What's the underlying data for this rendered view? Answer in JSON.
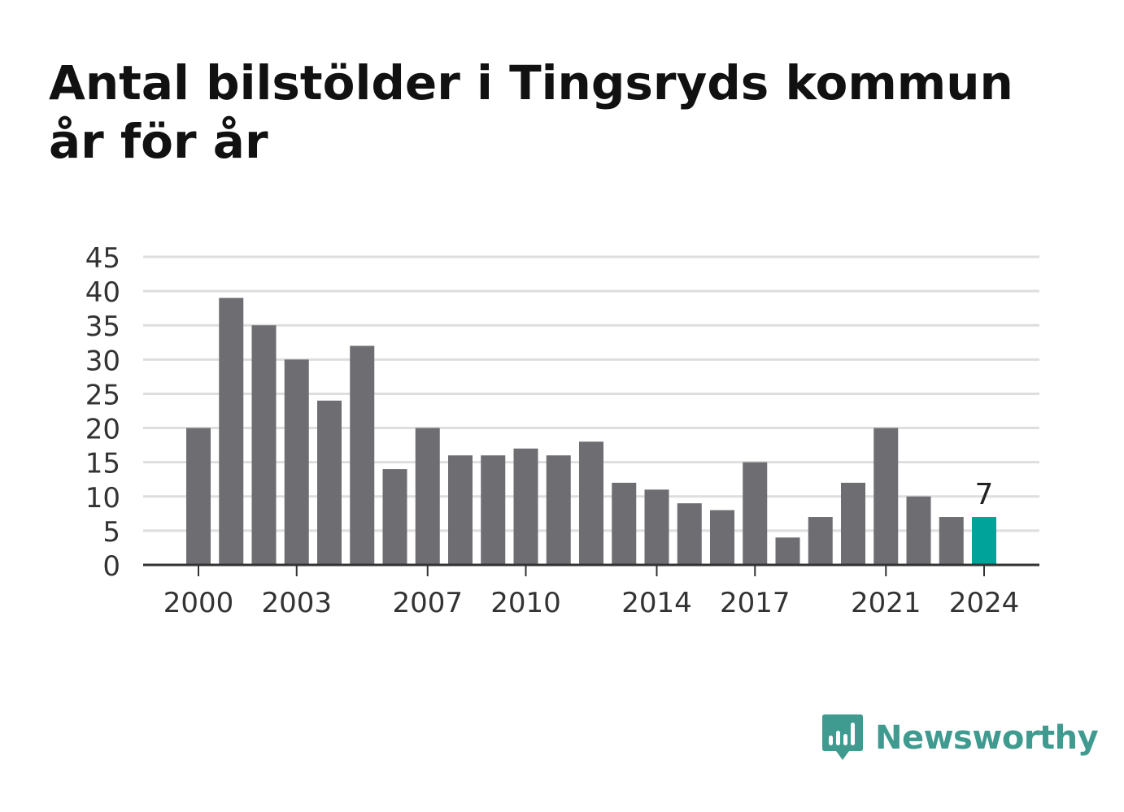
{
  "title": "Antal bilstölder i Tingsryds kommun år för år",
  "brand": {
    "name": "Newsworthy",
    "icon": "chart-speech-bubble-icon"
  },
  "colors": {
    "bar": "#6e6d72",
    "highlight": "#00a39a",
    "grid": "#dedede",
    "axis": "#333333",
    "text": "#333333",
    "brand": "#3f9a8f"
  },
  "chart_data": {
    "type": "bar",
    "title": "Antal bilstölder i Tingsryds kommun år för år",
    "categories": [
      "2000",
      "2001",
      "2002",
      "2003",
      "2004",
      "2005",
      "2006",
      "2007",
      "2008",
      "2009",
      "2010",
      "2011",
      "2012",
      "2013",
      "2014",
      "2015",
      "2016",
      "2017",
      "2018",
      "2019",
      "2020",
      "2021",
      "2022",
      "2023",
      "2024"
    ],
    "values": [
      20,
      39,
      35,
      30,
      24,
      32,
      14,
      20,
      16,
      16,
      17,
      16,
      18,
      12,
      11,
      9,
      8,
      15,
      4,
      7,
      12,
      20,
      10,
      7,
      7
    ],
    "x_tick_labels": [
      "2000",
      "2003",
      "2007",
      "2010",
      "2014",
      "2017",
      "2021",
      "2024"
    ],
    "y_ticks": [
      0,
      5,
      10,
      15,
      20,
      25,
      30,
      35,
      40,
      45
    ],
    "ylim": [
      0,
      45
    ],
    "grid": true,
    "highlight_category": "2024",
    "annotations": [
      {
        "category": "2024",
        "text": "7"
      }
    ],
    "xlabel": "",
    "ylabel": ""
  }
}
